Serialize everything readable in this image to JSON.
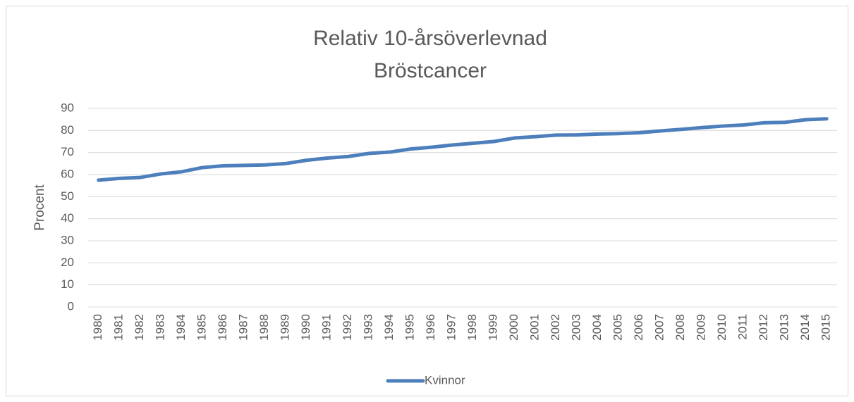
{
  "chart_data": {
    "type": "line",
    "title": "Relativ 10-årsöverlevnad",
    "subtitle": "Bröstcancer",
    "y_label": "Procent",
    "categories": [
      "1980",
      "1981",
      "1982",
      "1983",
      "1984",
      "1985",
      "1986",
      "1987",
      "1988",
      "1989",
      "1990",
      "1991",
      "1992",
      "1993",
      "1994",
      "1995",
      "1996",
      "1997",
      "1998",
      "1999",
      "2000",
      "2001",
      "2002",
      "2003",
      "2004",
      "2005",
      "2006",
      "2007",
      "2008",
      "2009",
      "2010",
      "2011",
      "2012",
      "2013",
      "2014",
      "2015"
    ],
    "series": [
      {
        "name": "Kvinnor",
        "color": "#4e7fbd",
        "values": [
          57.5,
          58.3,
          58.7,
          60.3,
          61.3,
          63.2,
          64.0,
          64.2,
          64.4,
          65.0,
          66.5,
          67.5,
          68.2,
          69.6,
          70.2,
          71.6,
          72.4,
          73.4,
          74.2,
          75.0,
          76.6,
          77.2,
          77.9,
          78.0,
          78.4,
          78.6,
          79.0,
          79.8,
          80.5,
          81.3,
          82.0,
          82.5,
          83.5,
          83.7,
          84.9,
          85.3
        ]
      }
    ],
    "ylim": [
      0,
      90
    ],
    "yticks": [
      0,
      10,
      20,
      30,
      40,
      50,
      60,
      70,
      80,
      90
    ],
    "grid": true,
    "legend": "bottom"
  }
}
